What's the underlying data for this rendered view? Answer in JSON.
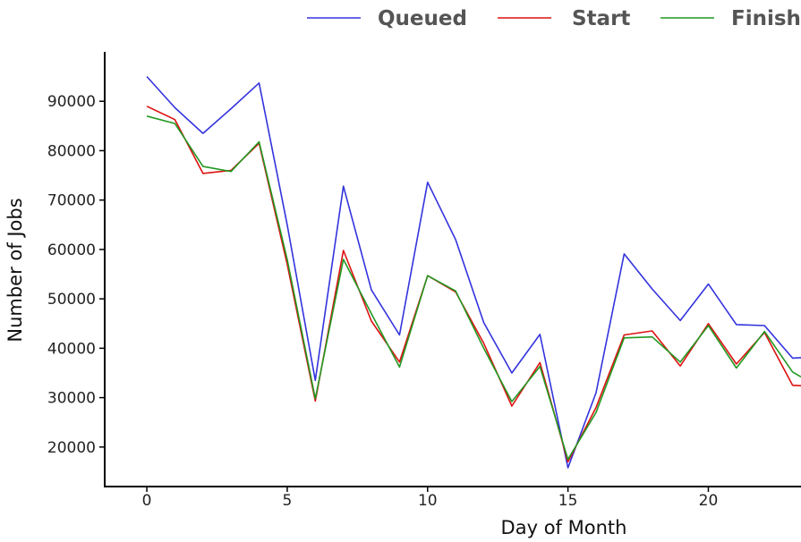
{
  "chart_data": {
    "type": "line",
    "title": "",
    "xlabel": "Day of Month",
    "ylabel": "Number of Jobs",
    "xlim": [
      -1.5,
      23.3
    ],
    "ylim": [
      12000,
      100000
    ],
    "xticks": [
      0,
      5,
      10,
      15,
      20
    ],
    "yticks": [
      20000,
      30000,
      40000,
      50000,
      60000,
      70000,
      80000,
      90000
    ],
    "grid": false,
    "legend_position": "top",
    "x": [
      0,
      1,
      2,
      3,
      4,
      5,
      6,
      7,
      8,
      9,
      10,
      11,
      12,
      13,
      14,
      15,
      16,
      17,
      18,
      19,
      20,
      21,
      22,
      23,
      23.3
    ],
    "series": [
      {
        "name": "Queued",
        "color": "#3333dd",
        "values": [
          95000,
          88700,
          83500,
          88500,
          93700,
          65000,
          33500,
          72800,
          51800,
          42700,
          73600,
          62000,
          45200,
          35000,
          42800,
          15800,
          31000,
          59100,
          52000,
          45600,
          53000,
          44800,
          44600,
          38000,
          38100
        ]
      },
      {
        "name": "Start",
        "color": "#dd1111",
        "values": [
          89000,
          86300,
          75400,
          76000,
          81500,
          57000,
          29300,
          59800,
          45500,
          37200,
          54700,
          51400,
          41000,
          28300,
          37100,
          17000,
          28000,
          42700,
          43500,
          36400,
          45000,
          36800,
          43200,
          32500,
          32400
        ]
      },
      {
        "name": "Finish",
        "color": "#229922",
        "values": [
          87000,
          85500,
          76800,
          75800,
          81800,
          58000,
          29800,
          58000,
          47000,
          36200,
          54700,
          51600,
          40000,
          29200,
          36300,
          17500,
          27000,
          42100,
          42300,
          37200,
          44600,
          36000,
          43400,
          35200,
          34200
        ]
      }
    ]
  }
}
